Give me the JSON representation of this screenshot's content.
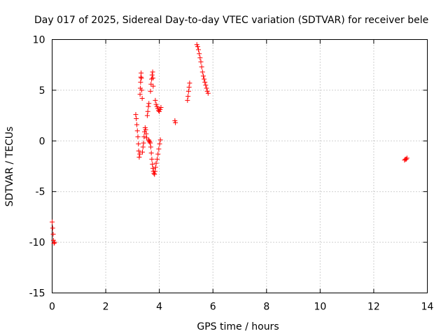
{
  "chart_data": {
    "type": "scatter",
    "title": "Day 017 of 2025, Sidereal Day-to-day VTEC variation (SDTVAR) for receiver bele",
    "xlabel": "GPS time / hours",
    "ylabel": "SDTVAR / TECUs",
    "xlim": [
      0,
      14
    ],
    "ylim": [
      -15,
      10
    ],
    "xticks": [
      0,
      2,
      4,
      6,
      8,
      10,
      12,
      14
    ],
    "xtick_labels": [
      "0",
      "2",
      "4",
      "6",
      "8",
      "10",
      "12",
      "14"
    ],
    "yticks": [
      -15,
      -10,
      -5,
      0,
      5,
      10
    ],
    "ytick_labels": [
      "-15",
      "-10",
      "-5",
      "0",
      "5",
      "10"
    ],
    "grid": true,
    "marker": "plus",
    "color": "#ff0000",
    "series": [
      {
        "name": "SDTVAR",
        "points": [
          [
            0.0,
            -8.0
          ],
          [
            0.02,
            -8.6
          ],
          [
            0.04,
            -9.2
          ],
          [
            0.05,
            -9.8
          ],
          [
            0.07,
            -10.1
          ],
          [
            0.09,
            -10.0
          ],
          [
            3.12,
            2.6
          ],
          [
            3.14,
            2.2
          ],
          [
            3.16,
            1.6
          ],
          [
            3.18,
            1.0
          ],
          [
            3.2,
            0.4
          ],
          [
            3.22,
            -0.3
          ],
          [
            3.23,
            -1.0
          ],
          [
            3.25,
            -1.6
          ],
          [
            3.27,
            -1.3
          ],
          [
            3.28,
            4.6
          ],
          [
            3.29,
            5.2
          ],
          [
            3.3,
            5.8
          ],
          [
            3.31,
            6.3
          ],
          [
            3.32,
            6.7
          ],
          [
            3.33,
            6.2
          ],
          [
            3.34,
            5.0
          ],
          [
            3.36,
            4.2
          ],
          [
            3.37,
            -1.1
          ],
          [
            3.39,
            -0.6
          ],
          [
            3.41,
            -0.2
          ],
          [
            3.43,
            0.4
          ],
          [
            3.45,
            0.9
          ],
          [
            3.47,
            1.3
          ],
          [
            3.49,
            1.1
          ],
          [
            3.51,
            0.7
          ],
          [
            3.53,
            0.3
          ],
          [
            3.55,
            2.5
          ],
          [
            3.57,
            2.9
          ],
          [
            3.59,
            3.4
          ],
          [
            3.61,
            3.7
          ],
          [
            3.6,
            0.1
          ],
          [
            3.62,
            0.0
          ],
          [
            3.64,
            -0.1
          ],
          [
            3.66,
            -0.2
          ],
          [
            3.67,
            4.9
          ],
          [
            3.69,
            5.6
          ],
          [
            3.71,
            6.1
          ],
          [
            3.73,
            6.5
          ],
          [
            3.75,
            6.8
          ],
          [
            3.76,
            6.2
          ],
          [
            3.77,
            5.4
          ],
          [
            3.68,
            -0.6
          ],
          [
            3.7,
            -1.2
          ],
          [
            3.72,
            -1.8
          ],
          [
            3.74,
            -2.3
          ],
          [
            3.76,
            -2.7
          ],
          [
            3.78,
            -3.0
          ],
          [
            3.8,
            -3.2
          ],
          [
            3.82,
            -3.3
          ],
          [
            3.84,
            -3.0
          ],
          [
            3.86,
            -2.6
          ],
          [
            3.88,
            -2.2
          ],
          [
            3.85,
            4.0
          ],
          [
            3.88,
            3.6
          ],
          [
            3.91,
            3.4
          ],
          [
            3.94,
            3.2
          ],
          [
            3.97,
            3.0
          ],
          [
            4.0,
            2.9
          ],
          [
            4.03,
            3.1
          ],
          [
            4.06,
            3.3
          ],
          [
            3.92,
            -1.8
          ],
          [
            3.95,
            -1.3
          ],
          [
            3.98,
            -0.8
          ],
          [
            4.01,
            -0.3
          ],
          [
            4.04,
            0.1
          ],
          [
            4.58,
            2.0
          ],
          [
            4.6,
            1.8
          ],
          [
            5.05,
            4.0
          ],
          [
            5.07,
            4.4
          ],
          [
            5.09,
            4.9
          ],
          [
            5.11,
            5.3
          ],
          [
            5.13,
            5.7
          ],
          [
            5.4,
            9.5
          ],
          [
            5.43,
            9.3
          ],
          [
            5.46,
            9.0
          ],
          [
            5.49,
            8.6
          ],
          [
            5.52,
            8.2
          ],
          [
            5.55,
            7.8
          ],
          [
            5.58,
            7.3
          ],
          [
            5.61,
            6.8
          ],
          [
            5.64,
            6.4
          ],
          [
            5.67,
            6.1
          ],
          [
            5.7,
            5.8
          ],
          [
            5.73,
            5.5
          ],
          [
            5.76,
            5.2
          ],
          [
            5.79,
            4.9
          ],
          [
            5.82,
            4.7
          ],
          [
            13.15,
            -1.9
          ],
          [
            13.18,
            -1.8
          ],
          [
            13.21,
            -1.8
          ],
          [
            13.24,
            -1.7
          ]
        ]
      }
    ]
  }
}
